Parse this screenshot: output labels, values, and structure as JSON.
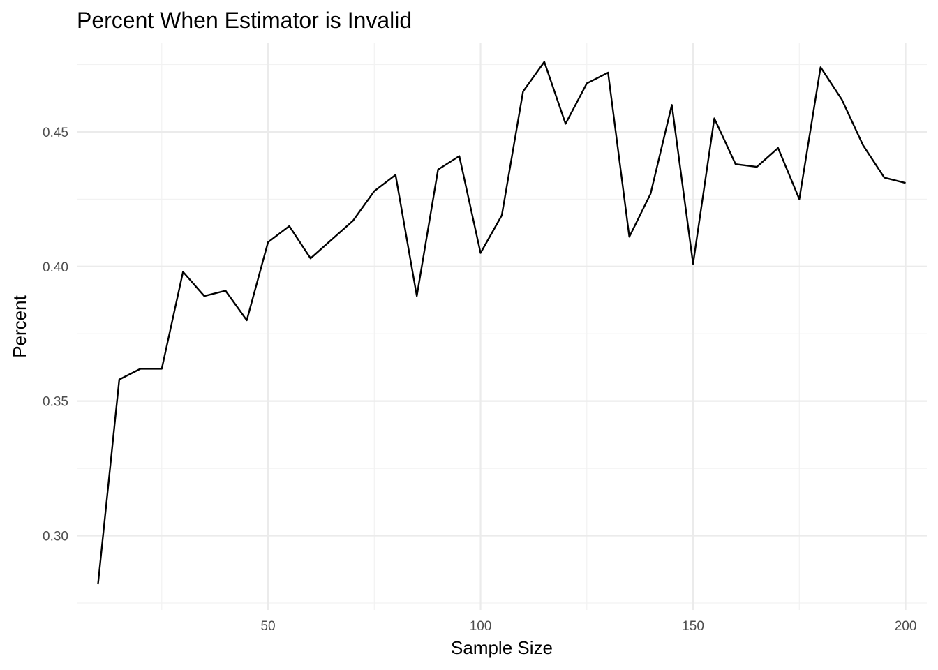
{
  "chart_data": {
    "type": "line",
    "title": "Percent When Estimator is Invalid",
    "xlabel": "Sample Size",
    "ylabel": "Percent",
    "xlim": [
      5,
      205
    ],
    "ylim": [
      0.2724,
      0.4829
    ],
    "x_major_ticks": [
      50,
      100,
      150,
      200
    ],
    "x_minor_ticks": [
      25,
      75,
      125,
      175
    ],
    "y_major_ticks": [
      0.3,
      0.35,
      0.4,
      0.45
    ],
    "y_minor_ticks": [
      0.275,
      0.325,
      0.375,
      0.425,
      0.475
    ],
    "x_tick_labels": [
      "50",
      "100",
      "150",
      "200"
    ],
    "y_tick_labels": [
      "0.30",
      "0.35",
      "0.40",
      "0.45"
    ],
    "grid": true,
    "legend": "none",
    "line_color": "#000000",
    "series": [
      {
        "x": [
          10,
          15,
          20,
          25,
          30,
          35,
          40,
          45,
          50,
          55,
          60,
          65,
          70,
          75,
          80,
          85,
          90,
          95,
          100,
          105,
          110,
          115,
          120,
          125,
          130,
          135,
          140,
          145,
          150,
          155,
          160,
          165,
          170,
          175,
          180,
          185,
          190,
          195,
          200
        ],
        "values": [
          0.282,
          0.358,
          0.362,
          0.362,
          0.398,
          0.389,
          0.391,
          0.38,
          0.409,
          0.415,
          0.403,
          0.41,
          0.417,
          0.428,
          0.434,
          0.389,
          0.436,
          0.441,
          0.405,
          0.419,
          0.465,
          0.476,
          0.453,
          0.468,
          0.472,
          0.411,
          0.427,
          0.46,
          0.401,
          0.455,
          0.438,
          0.437,
          0.444,
          0.425,
          0.474,
          0.462,
          0.445,
          0.433,
          0.431
        ]
      }
    ]
  }
}
